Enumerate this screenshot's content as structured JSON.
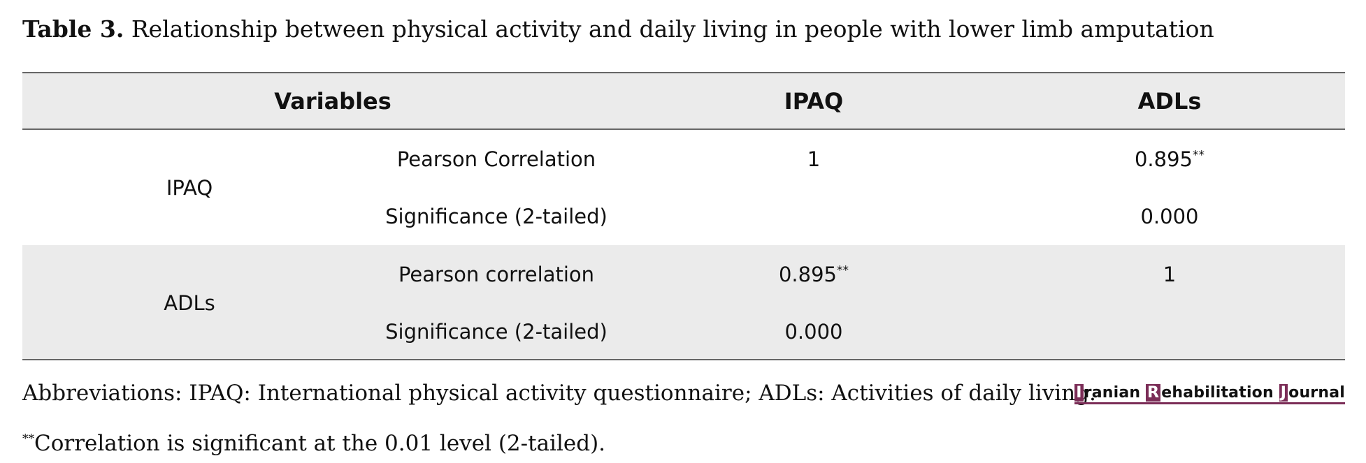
{
  "caption": {
    "label": "Table 3.",
    "text": "Relationship between physical activity and daily living in people with lower limb amputation"
  },
  "table": {
    "headers": [
      "Variables",
      "IPAQ",
      "ADLs"
    ],
    "groups": [
      {
        "name": "IPAQ",
        "rows": [
          {
            "stat": "Pearson Correlation",
            "ipaq": "1",
            "ipaq_sup": "",
            "adls": "0.895",
            "adls_sup": "**"
          },
          {
            "stat": "Significance (2-tailed)",
            "ipaq": "",
            "ipaq_sup": "",
            "adls": "0.000",
            "adls_sup": ""
          }
        ]
      },
      {
        "name": "ADLs",
        "rows": [
          {
            "stat": "Pearson correlation",
            "ipaq": "0.895",
            "ipaq_sup": "**",
            "adls": "1",
            "adls_sup": ""
          },
          {
            "stat": "Significance (2-tailed)",
            "ipaq": "0.000",
            "ipaq_sup": "",
            "adls": "",
            "adls_sup": ""
          }
        ]
      }
    ]
  },
  "abbreviations": "Abbreviations: IPAQ: International physical activity questionnaire; ADLs: Activities of daily living.",
  "footnote": {
    "marker": "**",
    "text": "Correlation is significant at the 0.01 level (2-tailed)."
  },
  "logo": {
    "words": [
      {
        "initial": "I",
        "rest": "ranian"
      },
      {
        "initial": "R",
        "rest": "ehabilitation"
      },
      {
        "initial": "J",
        "rest": "ournal"
      }
    ],
    "accent_color": "#7b2d57"
  }
}
